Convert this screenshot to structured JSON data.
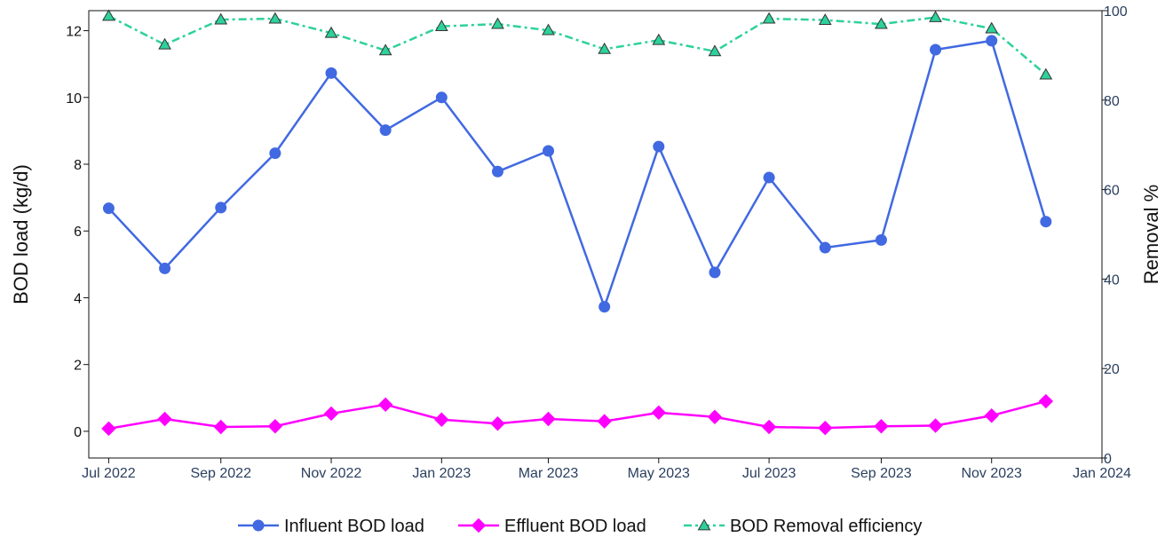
{
  "chart_data": {
    "type": "line",
    "xlabel": "",
    "ylabel": "BOD load (kg/d)",
    "y2label": "Removal %",
    "x_range": [
      "2022-06-20",
      "2024-01-01"
    ],
    "ylim": [
      -0.8,
      12.6
    ],
    "y2lim": [
      0,
      100
    ],
    "x_ticks": [
      {
        "date": "2022-07-01",
        "label": "Jul 2022"
      },
      {
        "date": "2022-09-01",
        "label": "Sep 2022"
      },
      {
        "date": "2022-11-01",
        "label": "Nov 2022"
      },
      {
        "date": "2023-01-01",
        "label": "Jan 2023"
      },
      {
        "date": "2023-03-01",
        "label": "Mar 2023"
      },
      {
        "date": "2023-05-01",
        "label": "May 2023"
      },
      {
        "date": "2023-07-01",
        "label": "Jul 2023"
      },
      {
        "date": "2023-09-01",
        "label": "Sep 2023"
      },
      {
        "date": "2023-11-01",
        "label": "Nov 2023"
      },
      {
        "date": "2024-01-01",
        "label": "Jan 2024"
      }
    ],
    "y_ticks": [
      {
        "value": 0,
        "label": "0"
      },
      {
        "value": 2,
        "label": "2"
      },
      {
        "value": 4,
        "label": "4"
      },
      {
        "value": 6,
        "label": "6"
      },
      {
        "value": 8,
        "label": "8"
      },
      {
        "value": 10,
        "label": "10"
      },
      {
        "value": 12,
        "label": "12"
      }
    ],
    "y2_ticks": [
      {
        "value": 0,
        "label": "0"
      },
      {
        "value": 20,
        "label": "20"
      },
      {
        "value": 40,
        "label": "40"
      },
      {
        "value": 60,
        "label": "60"
      },
      {
        "value": 80,
        "label": "80"
      },
      {
        "value": 100,
        "label": "100"
      }
    ],
    "grid": false,
    "legend_position": "bottom-center",
    "x": [
      "2022-07-01",
      "2022-08-01",
      "2022-09-01",
      "2022-10-01",
      "2022-11-01",
      "2022-12-01",
      "2023-01-01",
      "2023-02-01",
      "2023-03-01",
      "2023-04-01",
      "2023-05-01",
      "2023-06-01",
      "2023-07-01",
      "2023-08-01",
      "2023-09-01",
      "2023-10-01",
      "2023-11-01",
      "2023-12-01"
    ],
    "series": [
      {
        "name": "Influent BOD load",
        "axis": "left",
        "color": "#4169e1",
        "marker": "circle",
        "dash": "solid",
        "values": [
          6.68,
          4.88,
          6.7,
          8.33,
          10.73,
          9.02,
          10.0,
          7.78,
          8.4,
          3.73,
          8.53,
          4.76,
          7.6,
          5.5,
          5.73,
          11.43,
          11.7,
          6.28
        ]
      },
      {
        "name": "Effluent BOD load",
        "axis": "left",
        "color": "#ff00ff",
        "marker": "diamond",
        "dash": "solid",
        "values": [
          0.08,
          0.37,
          0.13,
          0.15,
          0.53,
          0.8,
          0.35,
          0.23,
          0.37,
          0.3,
          0.56,
          0.43,
          0.13,
          0.1,
          0.15,
          0.17,
          0.47,
          0.9
        ]
      },
      {
        "name": "BOD Removal efficiency",
        "axis": "right",
        "color": "#2ed19c",
        "marker": "triangle-up",
        "dash": "dashdot",
        "values": [
          98.8,
          92.4,
          98.0,
          98.2,
          95.0,
          91.1,
          96.5,
          97.0,
          95.6,
          91.4,
          93.4,
          90.9,
          98.2,
          97.9,
          97.0,
          98.5,
          96.0,
          85.7
        ]
      }
    ]
  }
}
